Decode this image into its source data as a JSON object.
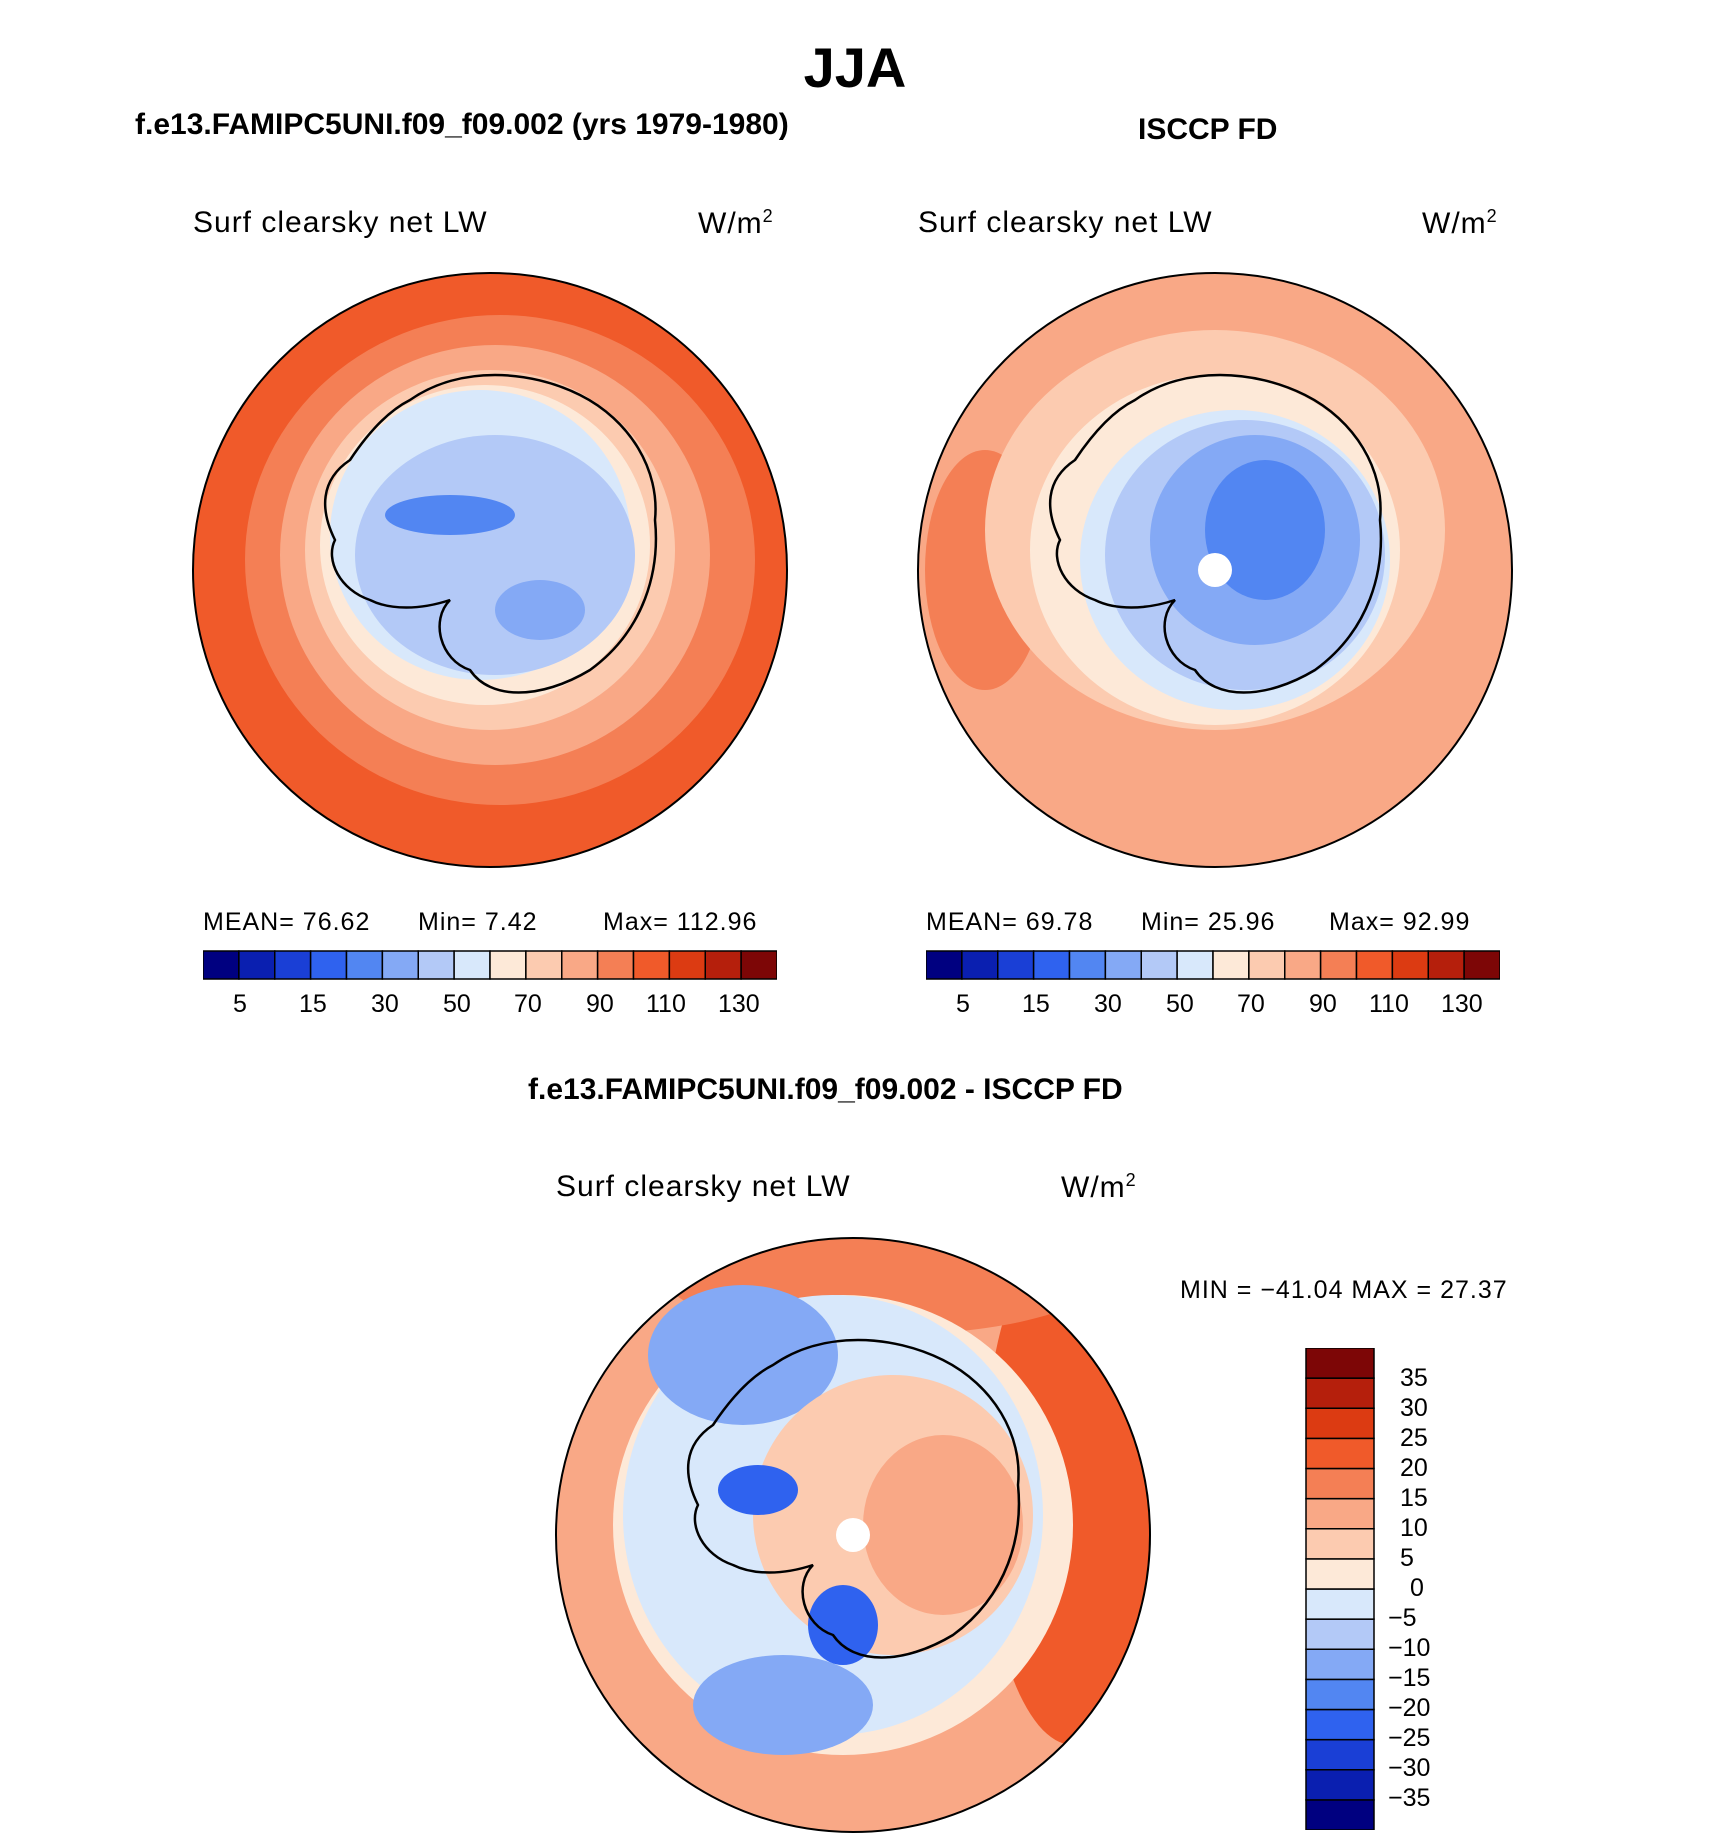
{
  "title": "JJA",
  "colors": {
    "abs_scale": [
      "#000080",
      "#0a1fb0",
      "#1a3fd6",
      "#2f62ef",
      "#5286f2",
      "#84a9f5",
      "#b3c9f7",
      "#d8e8fb",
      "#fde9d8",
      "#fccbb0",
      "#f9a886",
      "#f47f55",
      "#f05a2a",
      "#dc3b12",
      "#b51f0c",
      "#7d0606"
    ],
    "diff_scale": [
      "#000080",
      "#0a1fb0",
      "#1a3fd6",
      "#2f62ef",
      "#5286f2",
      "#84a9f5",
      "#b3c9f7",
      "#d8e8fb",
      "#fde9d8",
      "#fccbb0",
      "#f9a886",
      "#f47f55",
      "#f05a2a",
      "#dc3b12",
      "#b51f0c",
      "#7d0606"
    ]
  },
  "panels": [
    {
      "title": "f.e13.FAMIPC5UNI.f09_f09.002 (yrs 1979-1980)",
      "variable": "Surf clearsky net LW",
      "units": "W/m",
      "units_sup": "2",
      "mean_label": "MEAN=",
      "mean_value": "76.62",
      "min_label": "Min=",
      "min_value": "7.42",
      "max_label": "Max=",
      "max_value": "112.96",
      "colorbar_ticks": [
        "5",
        "15",
        "30",
        "50",
        "70",
        "90",
        "110",
        "130"
      ]
    },
    {
      "title": "ISCCP FD",
      "variable": "Surf clearsky net LW",
      "units": "W/m",
      "units_sup": "2",
      "mean_label": "MEAN=",
      "mean_value": "69.78",
      "min_label": "Min=",
      "min_value": "25.96",
      "max_label": "Max=",
      "max_value": "92.99",
      "colorbar_ticks": [
        "5",
        "15",
        "30",
        "50",
        "70",
        "90",
        "110",
        "130"
      ]
    }
  ],
  "difference": {
    "title": "f.e13.FAMIPC5UNI.f09_f09.002 - ISCCP FD",
    "variable": "Surf clearsky net LW",
    "units": "W/m",
    "units_sup": "2",
    "minmax_text": "MIN = −41.04 MAX =   27.37",
    "colorbar_ticks": [
      "35",
      "30",
      "25",
      "20",
      "15",
      "10",
      "5",
      "0",
      "−5",
      "−10",
      "−15",
      "−20",
      "−25",
      "−30",
      "−35"
    ]
  }
}
